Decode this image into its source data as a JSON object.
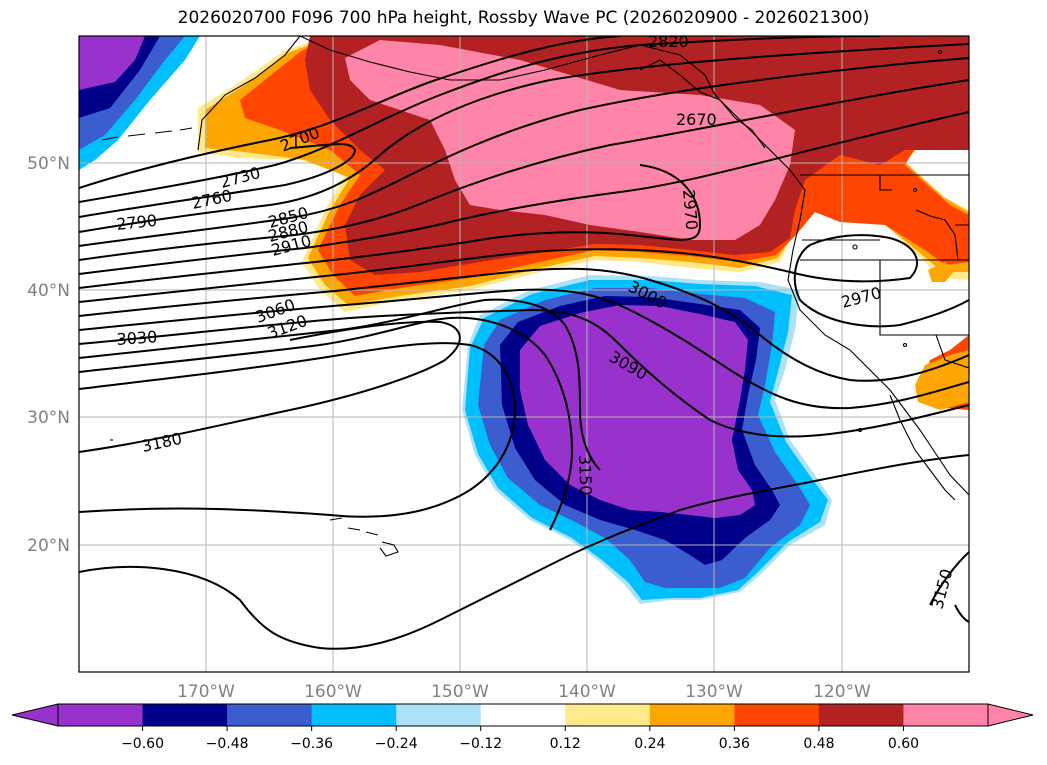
{
  "title": "2026020700 F096 700 hPa height, Rossby Wave PC (2026020900 - 2026021300)",
  "colors": {
    "purple": "#9932CC",
    "navy": "#00008B",
    "royal": "#3C5DCD",
    "sky": "#00BFFF",
    "pale_blue": "#ADE1F8",
    "yellow": "#FFE98A",
    "orange": "#FFA500",
    "orange_red": "#FF4500",
    "firebrick": "#B22222",
    "pink": "#FF85A8"
  },
  "longitude_ticks": [
    "170°W",
    "160°W",
    "150°W",
    "140°W",
    "130°W",
    "120°W"
  ],
  "latitude_ticks": [
    "50°N",
    "40°N",
    "30°N",
    "20°N"
  ],
  "contour_labels": [
    "2820",
    "2670",
    "2700",
    "2730",
    "2760",
    "2790",
    "2850",
    "2880",
    "2910",
    "2970",
    "3000",
    "3030",
    "3060",
    "3090",
    "3120",
    "3150",
    "3150",
    "3180",
    "2970"
  ],
  "colorbar": {
    "ticks": [
      "−0.60",
      "−0.48",
      "−0.36",
      "−0.24",
      "−0.12",
      "0.12",
      "0.24",
      "0.36",
      "0.48",
      "0.60"
    ],
    "bins": [
      "#9932CC",
      "#00008B",
      "#3C5DCD",
      "#00BFFF",
      "#ADE1F8",
      "#FFFFFF",
      "#FFE98A",
      "#FFA500",
      "#FF4500",
      "#B22222",
      "#FF85A8"
    ]
  }
}
